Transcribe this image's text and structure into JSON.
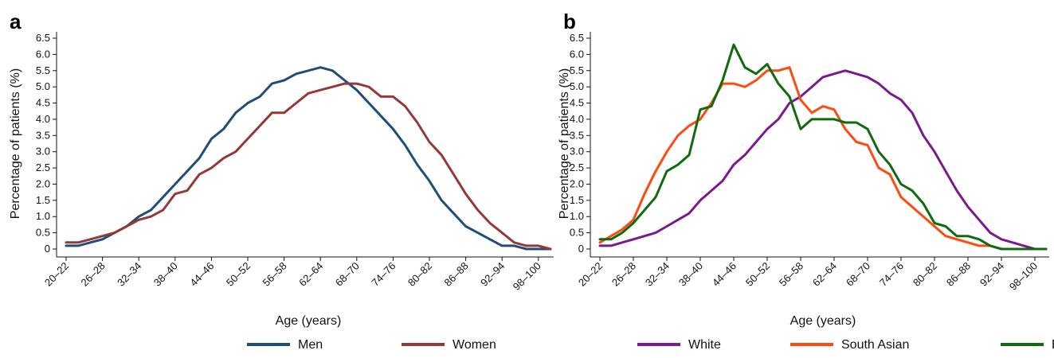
{
  "chart_data": [
    {
      "type": "line",
      "panel_label": "a",
      "xlabel": "Age (years)",
      "ylabel": "Percentage of patients (%)",
      "ylim": [
        0,
        6.5
      ],
      "yticks": [
        "0",
        "0.5",
        "1.0",
        "1.5",
        "2.0",
        "2.5",
        "3.0",
        "3.5",
        "4.0",
        "4.5",
        "5.0",
        "5.5",
        "6.0",
        "6.5"
      ],
      "x_categories": [
        "20–22",
        "22–24",
        "24–26",
        "26–28",
        "28–30",
        "30–32",
        "32–34",
        "34–36",
        "36–38",
        "38–40",
        "40–42",
        "42–44",
        "44–46",
        "46–48",
        "48–50",
        "50–52",
        "52–54",
        "54–56",
        "56–58",
        "58–60",
        "60–62",
        "62–64",
        "64–66",
        "66–68",
        "68–70",
        "70–72",
        "72–74",
        "74–76",
        "76–78",
        "78–80",
        "80–82",
        "82–84",
        "84–86",
        "86–88",
        "88–90",
        "90–92",
        "92–94",
        "94–96",
        "96–98",
        "98–100",
        "100–102"
      ],
      "x_tick_labels": [
        "20–22",
        "26–28",
        "32–34",
        "38–40",
        "44–46",
        "50–52",
        "56–58",
        "62–64",
        "68–70",
        "74–76",
        "80–82",
        "86–88",
        "92–94",
        "98–100"
      ],
      "grid": false,
      "legend_position": "bottom",
      "series": [
        {
          "name": "Men",
          "color": "#1f4e79",
          "values": [
            0.1,
            0.1,
            0.2,
            0.3,
            0.5,
            0.7,
            1.0,
            1.2,
            1.6,
            2.0,
            2.4,
            2.8,
            3.4,
            3.7,
            4.2,
            4.5,
            4.7,
            5.1,
            5.2,
            5.4,
            5.5,
            5.6,
            5.5,
            5.2,
            4.9,
            4.5,
            4.1,
            3.7,
            3.2,
            2.6,
            2.1,
            1.5,
            1.1,
            0.7,
            0.5,
            0.3,
            0.1,
            0.1,
            0.0,
            0.0,
            0.0
          ]
        },
        {
          "name": "Women",
          "color": "#943838",
          "values": [
            0.2,
            0.2,
            0.3,
            0.4,
            0.5,
            0.7,
            0.9,
            1.0,
            1.2,
            1.7,
            1.8,
            2.3,
            2.5,
            2.8,
            3.0,
            3.4,
            3.8,
            4.2,
            4.2,
            4.5,
            4.8,
            4.9,
            5.0,
            5.1,
            5.1,
            5.0,
            4.7,
            4.7,
            4.4,
            3.9,
            3.3,
            2.9,
            2.3,
            1.7,
            1.2,
            0.8,
            0.5,
            0.2,
            0.1,
            0.1,
            0.0
          ]
        }
      ]
    },
    {
      "type": "line",
      "panel_label": "b",
      "xlabel": "Age (years)",
      "ylabel": "Percentage of patients (%)",
      "ylim": [
        0,
        6.5
      ],
      "yticks": [
        "0",
        "0.5",
        "1.0",
        "1.5",
        "2.0",
        "2.5",
        "3.0",
        "3.5",
        "4.0",
        "4.5",
        "5.0",
        "5.5",
        "6.0",
        "6.5"
      ],
      "x_categories": [
        "20–22",
        "22–24",
        "24–26",
        "26–28",
        "28–30",
        "30–32",
        "32–34",
        "34–36",
        "36–38",
        "38–40",
        "40–42",
        "42–44",
        "44–46",
        "46–48",
        "48–50",
        "50–52",
        "52–54",
        "54–56",
        "56–58",
        "58–60",
        "60–62",
        "62–64",
        "64–66",
        "66–68",
        "68–70",
        "70–72",
        "72–74",
        "74–76",
        "76–78",
        "78–80",
        "80–82",
        "82–84",
        "84–86",
        "86–88",
        "88–90",
        "90–92",
        "92–94",
        "94–96",
        "96–98",
        "98–100",
        "100–102"
      ],
      "x_tick_labels": [
        "20–22",
        "26–28",
        "32–34",
        "38–40",
        "44–46",
        "50–52",
        "56–58",
        "62–64",
        "68–70",
        "74–76",
        "80–82",
        "86–88",
        "92–94",
        "98–100"
      ],
      "grid": false,
      "legend_position": "bottom",
      "series": [
        {
          "name": "White",
          "color": "#7b1a8e",
          "values": [
            0.1,
            0.1,
            0.2,
            0.3,
            0.4,
            0.5,
            0.7,
            0.9,
            1.1,
            1.5,
            1.8,
            2.1,
            2.6,
            2.9,
            3.3,
            3.7,
            4.0,
            4.5,
            4.7,
            5.0,
            5.3,
            5.4,
            5.5,
            5.4,
            5.3,
            5.1,
            4.8,
            4.6,
            4.2,
            3.5,
            3.0,
            2.4,
            1.8,
            1.3,
            0.9,
            0.5,
            0.3,
            0.2,
            0.1,
            0.0,
            0.0
          ]
        },
        {
          "name": "South Asian",
          "color": "#ff4a10",
          "values": [
            0.2,
            0.4,
            0.6,
            0.9,
            1.7,
            2.4,
            3.0,
            3.5,
            3.8,
            4.0,
            4.5,
            5.1,
            5.1,
            5.0,
            5.2,
            5.5,
            5.5,
            5.6,
            4.6,
            4.2,
            4.4,
            4.3,
            3.7,
            3.3,
            3.2,
            2.5,
            2.3,
            1.6,
            1.3,
            1.0,
            0.7,
            0.4,
            0.3,
            0.2,
            0.1,
            0.1,
            0.0,
            0.0,
            0.0,
            0.0,
            0.0
          ]
        },
        {
          "name": "Black",
          "color": "#0e6b0e",
          "values": [
            0.3,
            0.3,
            0.5,
            0.8,
            1.2,
            1.6,
            2.4,
            2.6,
            2.9,
            4.3,
            4.4,
            5.2,
            6.3,
            5.6,
            5.4,
            5.7,
            5.1,
            4.7,
            3.7,
            4.0,
            4.0,
            4.0,
            3.9,
            3.9,
            3.7,
            3.0,
            2.6,
            2.0,
            1.8,
            1.4,
            0.8,
            0.7,
            0.4,
            0.4,
            0.3,
            0.1,
            0.0,
            0.0,
            0.0,
            0.0,
            0.0
          ]
        }
      ]
    }
  ]
}
